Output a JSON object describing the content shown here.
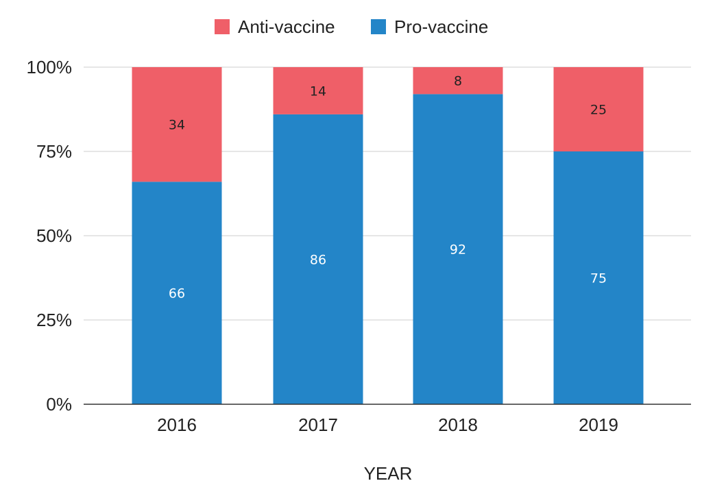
{
  "chart_data": {
    "type": "bar",
    "stacked": true,
    "categories": [
      "2016",
      "2017",
      "2018",
      "2019"
    ],
    "series": [
      {
        "name": "Pro-vaccine",
        "values": [
          66,
          86,
          92,
          75
        ],
        "color": "#2385c8",
        "label_color": "#ffffff"
      },
      {
        "name": "Anti-vaccine",
        "values": [
          34,
          14,
          8,
          25
        ],
        "color": "#ef5f68",
        "label_color": "#222222"
      }
    ],
    "legend_order": [
      1,
      0
    ],
    "legend_position": "top",
    "xlabel": "YEAR",
    "ylabel": "",
    "ylim": [
      0,
      100
    ],
    "yticks": [
      "0%",
      "25%",
      "50%",
      "75%",
      "100%"
    ],
    "grid": true,
    "gridline_color": "#cccccc",
    "axis_color": "#333333"
  }
}
